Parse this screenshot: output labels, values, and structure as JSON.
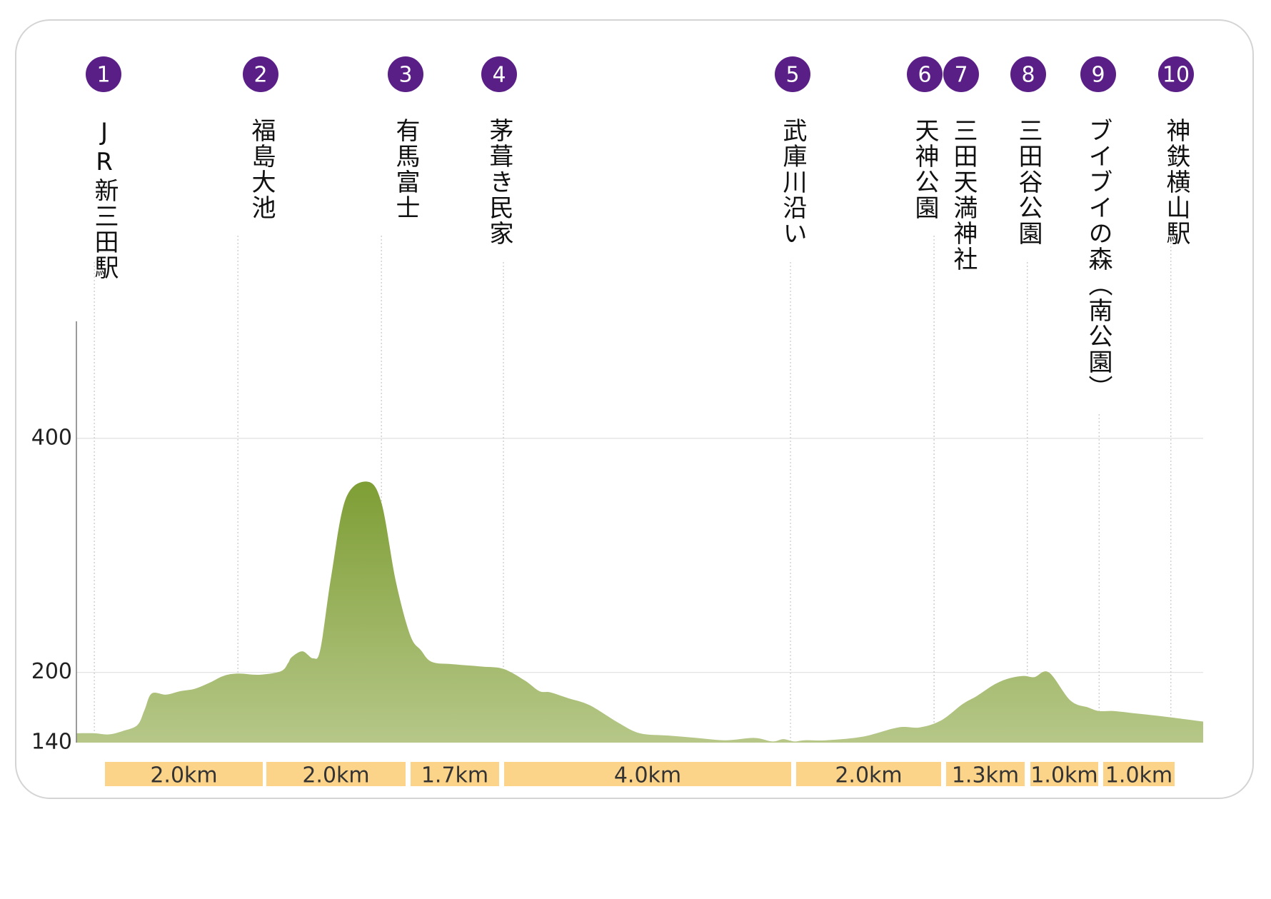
{
  "chart_data": {
    "type": "area",
    "title": "",
    "xlabel": "",
    "ylabel": "",
    "ylim": [
      140,
      500
    ],
    "yticks": [
      140,
      200,
      400
    ],
    "grid": true,
    "color": "#7e9e35",
    "color_light": "#b6c788",
    "marker_color": "#5a1f87",
    "segment_color": "#fbd48a",
    "stations": [
      {
        "num": "1",
        "name": "JR新三田駅",
        "km": 0.0
      },
      {
        "num": "2",
        "name": "福島大池",
        "km": 2.0
      },
      {
        "num": "3",
        "name": "有馬富士",
        "km": 4.0
      },
      {
        "num": "4",
        "name": "茅葺き民家",
        "km": 5.7
      },
      {
        "num": "5",
        "name": "武庫川沿い",
        "km": 9.7
      },
      {
        "num": "6",
        "name": "天神公園",
        "km": 11.7
      },
      {
        "num": "7",
        "name": "三田天満神社",
        "km": 11.7
      },
      {
        "num": "8",
        "name": "三田谷公園",
        "km": 13.0
      },
      {
        "num": "9",
        "name": "ブイブイの森（南公園）",
        "km": 14.0
      },
      {
        "num": "10",
        "name": "神鉄横山駅",
        "km": 15.0
      }
    ],
    "segments": [
      "2.0km",
      "2.0km",
      "1.7km",
      "4.0km",
      "2.0km",
      "1.3km",
      "1.0km",
      "1.0km"
    ],
    "profile": {
      "x": [
        -0.25,
        0.0,
        0.2,
        0.4,
        0.6,
        0.7,
        0.8,
        1.0,
        1.2,
        1.4,
        1.6,
        1.8,
        2.0,
        2.3,
        2.6,
        2.7,
        2.75,
        2.9,
        3.05,
        3.15,
        3.3,
        3.5,
        3.8,
        4.0,
        4.2,
        4.4,
        4.55,
        4.7,
        5.0,
        5.4,
        5.7,
        6.0,
        6.2,
        6.35,
        6.6,
        6.9,
        7.3,
        7.6,
        8.0,
        8.4,
        8.8,
        9.2,
        9.45,
        9.6,
        9.75,
        9.9,
        10.2,
        10.7,
        11.2,
        11.5,
        11.8,
        12.1,
        12.3,
        12.55,
        12.75,
        12.95,
        13.1,
        13.3,
        13.6,
        13.85,
        14.0,
        14.2,
        14.5,
        14.8,
        15.2,
        15.45
      ],
      "y": [
        148,
        148,
        147,
        150,
        155,
        168,
        182,
        181,
        184,
        186,
        191,
        197,
        199,
        198,
        201,
        208,
        213,
        218,
        212,
        220,
        282,
        348,
        363,
        345,
        278,
        232,
        219,
        209,
        207,
        205,
        203,
        193,
        184,
        183,
        178,
        172,
        157,
        148,
        146,
        144,
        142,
        144,
        141,
        143,
        141,
        142,
        142,
        145,
        153,
        153,
        159,
        173,
        180,
        190,
        195,
        197,
        196,
        200,
        176,
        170,
        167,
        167,
        165,
        163,
        160,
        158
      ]
    }
  }
}
